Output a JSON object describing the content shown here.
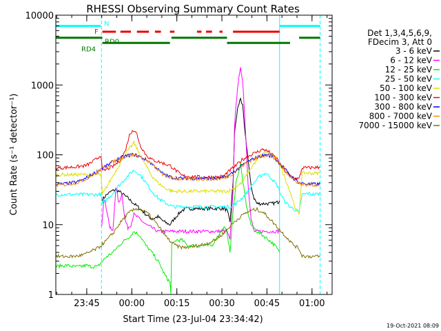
{
  "chart_data": {
    "type": "line",
    "title": "RHESSI Observing Summary Count Rates",
    "xlabel": "Start Time (23-Jul-04 23:34:42)",
    "ylabel": "Count Rate (s⁻¹ detector⁻¹)",
    "yscale": "log",
    "ylim": [
      1,
      10000
    ],
    "xlim_minutes": [
      0,
      92
    ],
    "x_unit": "minutes after 23:34:42",
    "x_ticks": [
      {
        "label": "23:45",
        "minutes": 10.3
      },
      {
        "label": "00:00",
        "minutes": 25.3
      },
      {
        "label": "00:15",
        "minutes": 40.3
      },
      {
        "label": "00:30",
        "minutes": 55.3
      },
      {
        "label": "00:45",
        "minutes": 70.3
      },
      {
        "label": "01:00",
        "minutes": 85.3
      }
    ],
    "y_ticks": [
      {
        "label": "1",
        "value": 1
      },
      {
        "label": "10",
        "value": 10
      },
      {
        "label": "100",
        "value": 100
      },
      {
        "label": "1000",
        "value": 1000
      },
      {
        "label": "10000",
        "value": 10000
      }
    ],
    "legend": {
      "placement": "right",
      "header": [
        "Det 1,3,4,5,6,9,",
        "FDecim 3, Att 0"
      ],
      "entries": [
        {
          "label": "3 - 6 keV",
          "color": "#000000"
        },
        {
          "label": "6 - 12 keV",
          "color": "#ff00ff"
        },
        {
          "label": "12 - 25 keV",
          "color": "#00ee00"
        },
        {
          "label": "25 - 50 keV",
          "color": "#00ffff"
        },
        {
          "label": "50 - 100 keV",
          "color": "#dddd00"
        },
        {
          "label": "100 - 300 keV",
          "color": "#ee0000"
        },
        {
          "label": "300 - 800 keV",
          "color": "#0000ff"
        },
        {
          "label": "800 - 7000 keV",
          "color": "#ff8800"
        },
        {
          "label": "7000 - 15000 keV",
          "color": "#807000"
        }
      ]
    },
    "flag_bars": [
      {
        "label": "N",
        "color": "#00ffff",
        "level": 7000,
        "segments": [
          [
            0,
            15
          ],
          [
            74.5,
            88
          ]
        ]
      },
      {
        "label": "F",
        "color": "#ee0000",
        "level": 5800,
        "segments": [
          [
            15.5,
            20
          ],
          [
            21.5,
            25
          ],
          [
            27,
            31
          ],
          [
            33,
            35
          ],
          [
            38,
            39.5
          ],
          [
            47,
            48.5
          ],
          [
            50,
            52
          ],
          [
            54.5,
            55.5
          ],
          [
            59,
            74.5
          ]
        ]
      },
      {
        "label": "RD0",
        "color": "#007700",
        "level": 4750,
        "segments": [
          [
            0,
            15.5
          ],
          [
            38.5,
            57
          ],
          [
            81,
            88
          ]
        ]
      },
      {
        "label": "RD4",
        "color": "#007700",
        "level": 4000,
        "segments": [
          [
            15.5,
            38
          ],
          [
            57,
            78
          ]
        ]
      }
    ],
    "vertical_markers": {
      "cyan_solid_minutes": [
        0,
        74.5
      ],
      "cyan_dashed_minutes": [
        15.2,
        88
      ]
    },
    "series": [
      {
        "name": "3 - 6 keV",
        "color": "#000000",
        "x": [
          15.5,
          17,
          18.5,
          20,
          22,
          24,
          26,
          28,
          30,
          32,
          34,
          36,
          38,
          40,
          42,
          44,
          46,
          48,
          50,
          52,
          54,
          56,
          57,
          58,
          59,
          59.5,
          60.5,
          61.5,
          62.2,
          63,
          64,
          65,
          66,
          67,
          68,
          70,
          72,
          74,
          74.5
        ],
        "y": [
          23,
          27,
          30,
          32,
          28,
          24,
          20,
          17,
          14,
          12,
          13,
          11,
          10,
          13,
          16,
          17,
          17,
          17,
          17,
          17,
          17,
          17,
          16,
          11,
          40,
          200,
          450,
          650,
          500,
          200,
          90,
          35,
          24,
          20,
          20,
          20,
          20,
          21,
          22
        ]
      },
      {
        "name": "6 - 12 keV",
        "color": "#ff00ff",
        "x": [
          15.3,
          16,
          17,
          18,
          19,
          20,
          21,
          22,
          23,
          24,
          25,
          26,
          28,
          30,
          32,
          34,
          36,
          38,
          40,
          42,
          44,
          46,
          48,
          50,
          52,
          54,
          56,
          57,
          58,
          59,
          59.5,
          60.5,
          61.5,
          62.2,
          63,
          64,
          65,
          66,
          67,
          68,
          70,
          72,
          74,
          74.5
        ],
        "y": [
          10,
          24,
          16,
          9,
          8,
          35,
          20,
          28,
          12,
          9,
          10,
          14,
          12,
          10,
          9,
          8,
          8,
          8,
          8,
          8,
          8,
          8,
          8,
          8,
          8,
          8,
          8,
          8,
          6,
          30,
          250,
          950,
          1700,
          1200,
          300,
          40,
          12,
          8,
          8,
          8,
          8,
          8,
          8,
          8
        ]
      },
      {
        "name": "12 - 25 keV",
        "color": "#00ee00",
        "x": [
          0,
          2,
          4,
          6,
          8,
          10,
          12,
          14,
          15.5,
          17,
          19,
          21,
          23,
          25,
          26,
          28,
          30,
          32,
          34,
          35,
          36,
          37,
          38,
          38.3,
          38.6,
          40,
          42,
          44,
          46,
          48,
          50,
          52,
          53,
          54,
          55,
          56,
          57,
          58,
          59,
          60,
          61.5,
          62.5,
          63.5,
          65,
          67,
          69,
          71,
          73,
          74.5
        ],
        "y": [
          2.5,
          2.6,
          2.6,
          2.5,
          2.5,
          2.6,
          2.5,
          2.5,
          3,
          3.5,
          4,
          5,
          6,
          7,
          8,
          7,
          5,
          4,
          3,
          2.5,
          2,
          1.7,
          1.5,
          1,
          5,
          6,
          6,
          5,
          5,
          5,
          5,
          5,
          6,
          7,
          8,
          9,
          8,
          4,
          15,
          40,
          75,
          35,
          18,
          10,
          8,
          7,
          6,
          5,
          4
        ]
      },
      {
        "name": "25 - 50 keV",
        "color": "#00ffff",
        "x": [
          0,
          15,
          15.5,
          17,
          19,
          21,
          23,
          25,
          26,
          28,
          30,
          32,
          34,
          36,
          38,
          39,
          42,
          48,
          54,
          56,
          57,
          58,
          60,
          62,
          64,
          66,
          68,
          70,
          72,
          74,
          74.5,
          76,
          78,
          80,
          81,
          82,
          84,
          86,
          88
        ],
        "y": [
          27,
          27,
          20,
          23,
          28,
          36,
          45,
          55,
          60,
          52,
          40,
          30,
          24,
          21,
          19,
          18,
          18,
          18,
          18,
          18,
          18,
          18,
          20,
          24,
          30,
          40,
          50,
          55,
          45,
          35,
          30,
          22,
          18,
          16,
          15,
          27,
          28,
          27,
          28
        ]
      },
      {
        "name": "50 - 100 keV",
        "color": "#dddd00",
        "x": [
          0,
          15,
          15.5,
          17,
          19,
          21,
          23,
          25,
          26,
          28,
          30,
          32,
          34,
          36,
          38,
          39,
          42,
          48,
          54,
          56,
          57,
          58,
          60,
          62,
          64,
          66,
          68,
          70,
          72,
          74,
          74.5,
          76,
          78,
          80,
          81,
          82,
          84,
          86,
          88
        ],
        "y": [
          52,
          52,
          27,
          35,
          50,
          70,
          100,
          130,
          150,
          100,
          70,
          50,
          40,
          34,
          31,
          30,
          30,
          30,
          30,
          30,
          30,
          31,
          35,
          40,
          55,
          75,
          95,
          110,
          100,
          85,
          75,
          50,
          30,
          16,
          14,
          55,
          55,
          54,
          55
        ]
      },
      {
        "name": "100 - 300 keV",
        "color": "#ee0000",
        "x": [
          0,
          2,
          4,
          6,
          8,
          10,
          12,
          14,
          15,
          15.5,
          17,
          19,
          21,
          23,
          24.5,
          25.5,
          27,
          28,
          30,
          32,
          34,
          36,
          38,
          39,
          42,
          48,
          54,
          56,
          57,
          58,
          60,
          62,
          64,
          66,
          68,
          69,
          70,
          71,
          72,
          74,
          74.5,
          76,
          78,
          80,
          81,
          82,
          84,
          86,
          88
        ],
        "y": [
          65,
          65,
          66,
          67,
          68,
          70,
          78,
          90,
          100,
          58,
          62,
          68,
          80,
          110,
          190,
          230,
          200,
          140,
          100,
          85,
          80,
          75,
          70,
          65,
          50,
          48,
          48,
          50,
          55,
          60,
          70,
          85,
          95,
          105,
          115,
          120,
          115,
          110,
          100,
          85,
          75,
          60,
          50,
          46,
          45,
          65,
          65,
          66,
          66
        ]
      },
      {
        "name": "300 - 800 keV",
        "color": "#0000ff",
        "x": [
          0,
          2,
          4,
          6,
          8,
          10,
          12,
          14,
          15,
          17,
          19,
          21,
          23,
          25,
          26,
          27,
          29,
          31,
          33,
          35,
          37,
          39,
          42,
          48,
          54,
          56,
          58,
          60,
          62,
          64,
          66,
          68,
          70,
          72,
          74,
          76,
          78,
          80,
          81,
          82,
          84,
          86,
          88
        ],
        "y": [
          38,
          38,
          39,
          40,
          42,
          46,
          52,
          58,
          63,
          70,
          80,
          88,
          95,
          100,
          100,
          98,
          90,
          80,
          68,
          56,
          50,
          47,
          46,
          46,
          46,
          47,
          52,
          60,
          70,
          80,
          88,
          95,
          100,
          95,
          80,
          65,
          50,
          43,
          40,
          39,
          38,
          38,
          38
        ]
      },
      {
        "name": "800 - 7000 keV",
        "color": "#ff8800",
        "x": [
          0,
          2,
          4,
          6,
          8,
          10,
          12,
          14,
          15,
          17,
          19,
          21,
          23,
          25,
          26,
          27,
          29,
          31,
          33,
          35,
          37,
          39,
          42,
          48,
          54,
          56,
          58,
          60,
          62,
          64,
          66,
          68,
          70,
          72,
          74,
          76,
          78,
          80,
          81,
          82,
          84,
          86,
          88
        ],
        "y": [
          37,
          37,
          38,
          39,
          41,
          45,
          51,
          57,
          62,
          69,
          79,
          87,
          94,
          99,
          99,
          97,
          89,
          79,
          67,
          55,
          49,
          46,
          45,
          45,
          45,
          46,
          51,
          59,
          69,
          79,
          87,
          94,
          99,
          94,
          79,
          64,
          49,
          42,
          39,
          38,
          37,
          37,
          37
        ]
      },
      {
        "name": "7000 - 15000 keV",
        "color": "#807000",
        "x": [
          0,
          2,
          4,
          6,
          8,
          10,
          12,
          14,
          15,
          17,
          19,
          21,
          23,
          25,
          27,
          29,
          31,
          33,
          35,
          37,
          39,
          41,
          43,
          45,
          47,
          49,
          51,
          53,
          55,
          57,
          59,
          61,
          63,
          65,
          67,
          69,
          71,
          73,
          75,
          77,
          79,
          81,
          82,
          84,
          86,
          88
        ],
        "y": [
          3.5,
          3.5,
          3.5,
          3.5,
          3.6,
          3.8,
          4.2,
          4.6,
          5,
          6,
          7.5,
          10,
          13,
          15.5,
          17,
          16,
          14,
          11,
          8.5,
          6.5,
          5.3,
          4.8,
          4.7,
          4.8,
          5,
          5.2,
          5.5,
          6,
          7,
          8.5,
          10.5,
          12.5,
          14.5,
          16,
          16.5,
          15,
          12.5,
          10,
          8,
          6.5,
          5.2,
          4.5,
          3.6,
          3.5,
          3.5,
          3.5
        ]
      }
    ]
  },
  "footer_timestamp": "19-Oct-2021 08:09"
}
